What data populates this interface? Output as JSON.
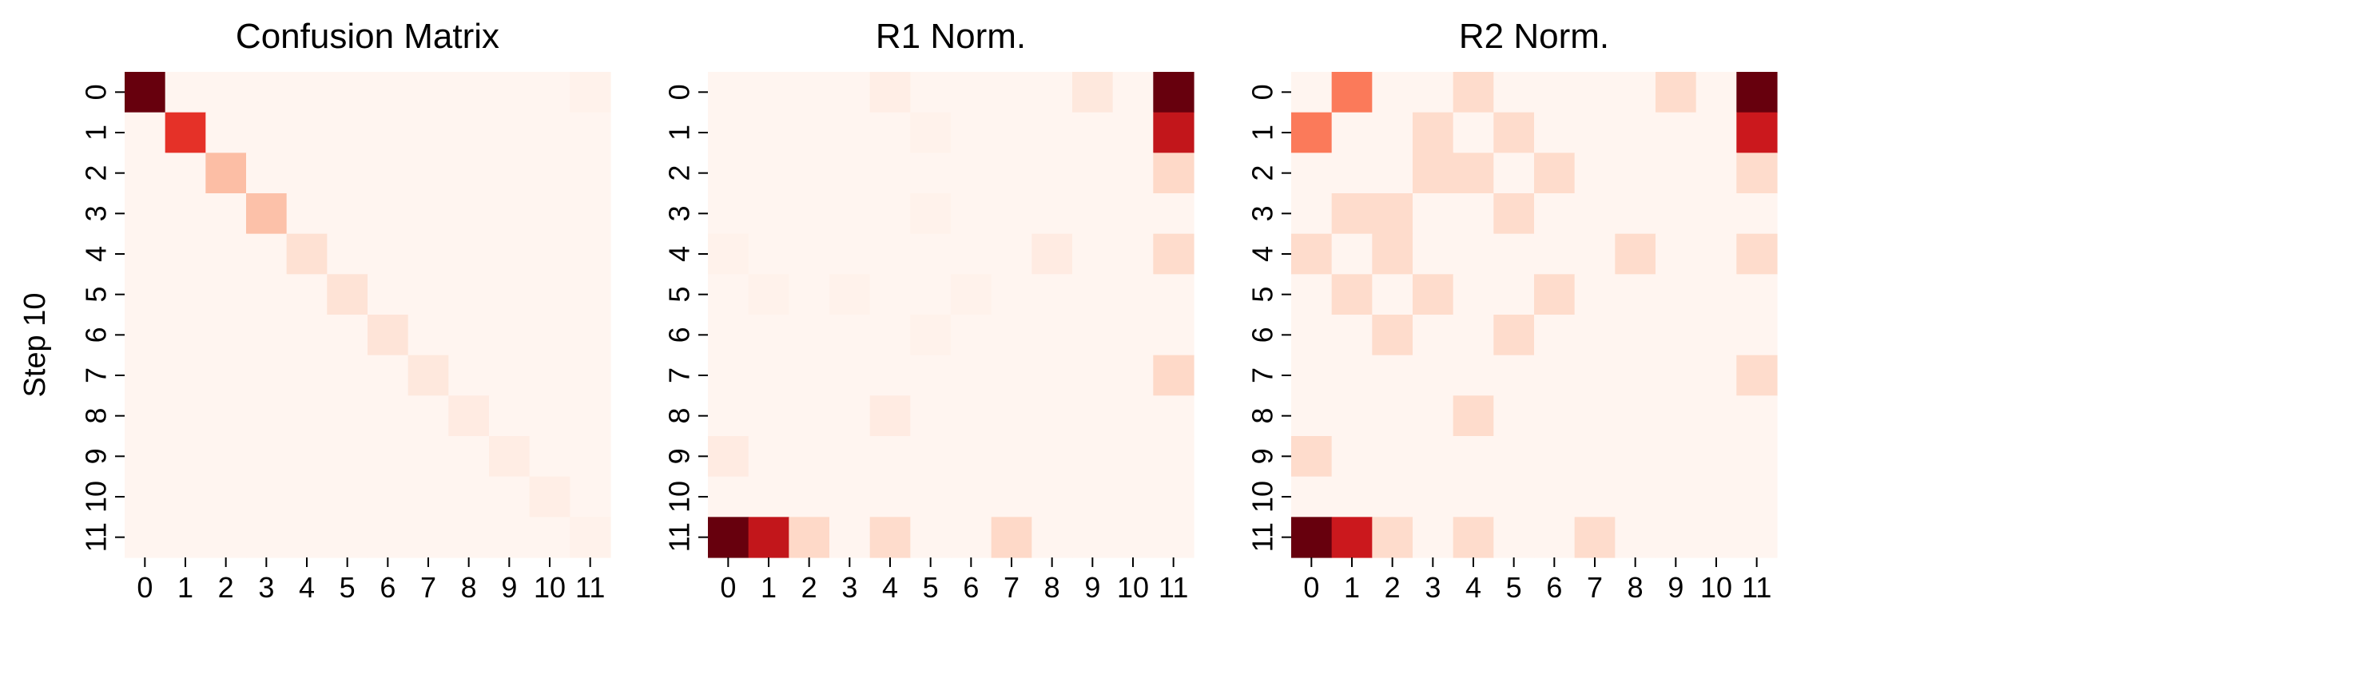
{
  "figure": {
    "ylabel": "Step 10"
  },
  "colors": {
    "scale": [
      "#fff5f0",
      "#fee0d2",
      "#fcbba1",
      "#fc9272",
      "#fb6a4a",
      "#ef3b2c",
      "#cb181d",
      "#a50f15",
      "#67000d"
    ]
  },
  "chart_data": [
    {
      "type": "heatmap",
      "title": "Confusion Matrix",
      "xlabel": "",
      "ylabel": "Step 10",
      "x_ticks": [
        "0",
        "1",
        "2",
        "3",
        "4",
        "5",
        "6",
        "7",
        "8",
        "9",
        "10",
        "11"
      ],
      "y_ticks": [
        "0",
        "1",
        "2",
        "3",
        "4",
        "5",
        "6",
        "7",
        "8",
        "9",
        "10",
        "11"
      ],
      "colorscale": "Reds",
      "vmin": 0,
      "vmax": 1,
      "values": [
        [
          1.0,
          0,
          0,
          0,
          0,
          0,
          0,
          0,
          0,
          0,
          0,
          0.02
        ],
        [
          0,
          0.66,
          0,
          0,
          0,
          0,
          0,
          0,
          0,
          0,
          0,
          0
        ],
        [
          0,
          0,
          0.24,
          0,
          0,
          0,
          0,
          0,
          0,
          0,
          0,
          0
        ],
        [
          0,
          0,
          0,
          0.23,
          0,
          0,
          0,
          0,
          0,
          0,
          0,
          0
        ],
        [
          0,
          0,
          0,
          0,
          0.12,
          0,
          0,
          0,
          0,
          0,
          0,
          0
        ],
        [
          0,
          0,
          0,
          0,
          0,
          0.11,
          0,
          0,
          0,
          0,
          0,
          0
        ],
        [
          0,
          0,
          0,
          0,
          0,
          0,
          0.1,
          0,
          0,
          0,
          0,
          0
        ],
        [
          0,
          0,
          0,
          0,
          0,
          0,
          0,
          0.08,
          0,
          0,
          0,
          0
        ],
        [
          0,
          0,
          0,
          0,
          0,
          0,
          0,
          0,
          0.06,
          0,
          0,
          0
        ],
        [
          0,
          0,
          0,
          0,
          0,
          0,
          0,
          0,
          0,
          0.05,
          0,
          0
        ],
        [
          0,
          0,
          0,
          0,
          0,
          0,
          0,
          0,
          0,
          0,
          0.04,
          0
        ],
        [
          0,
          0,
          0,
          0,
          0,
          0,
          0,
          0,
          0,
          0,
          0,
          0.02
        ]
      ]
    },
    {
      "type": "heatmap",
      "title": "R1 Norm.",
      "xlabel": "",
      "ylabel": "",
      "x_ticks": [
        "0",
        "1",
        "2",
        "3",
        "4",
        "5",
        "6",
        "7",
        "8",
        "9",
        "10",
        "11"
      ],
      "y_ticks": [
        "0",
        "1",
        "2",
        "3",
        "4",
        "5",
        "6",
        "7",
        "8",
        "9",
        "10",
        "11"
      ],
      "colorscale": "Reds",
      "vmin": 0,
      "vmax": 1,
      "values": [
        [
          0,
          0,
          0,
          0,
          0.04,
          0,
          0,
          0,
          0,
          0.08,
          0,
          1.0
        ],
        [
          0,
          0,
          0,
          0,
          0,
          0.02,
          0,
          0,
          0,
          0,
          0,
          0.78
        ],
        [
          0,
          0,
          0,
          0,
          0,
          0,
          0,
          0,
          0,
          0,
          0,
          0.15
        ],
        [
          0,
          0,
          0,
          0,
          0,
          0.02,
          0,
          0,
          0,
          0,
          0,
          0
        ],
        [
          0.02,
          0,
          0,
          0,
          0,
          0,
          0,
          0,
          0.06,
          0,
          0,
          0.14
        ],
        [
          0,
          0.02,
          0,
          0.02,
          0,
          0,
          0.02,
          0,
          0,
          0,
          0,
          0
        ],
        [
          0,
          0,
          0,
          0,
          0,
          0.02,
          0,
          0,
          0,
          0,
          0,
          0
        ],
        [
          0,
          0,
          0,
          0,
          0,
          0,
          0,
          0,
          0,
          0,
          0,
          0.15
        ],
        [
          0,
          0,
          0,
          0,
          0.06,
          0,
          0,
          0,
          0,
          0,
          0,
          0
        ],
        [
          0.06,
          0,
          0,
          0,
          0,
          0,
          0,
          0,
          0,
          0,
          0,
          0
        ],
        [
          0,
          0,
          0,
          0,
          0,
          0,
          0,
          0,
          0,
          0,
          0,
          0
        ],
        [
          1.0,
          0.78,
          0.15,
          0,
          0.14,
          0,
          0,
          0.15,
          0,
          0,
          0,
          0
        ]
      ]
    },
    {
      "type": "heatmap",
      "title": "R2 Norm.",
      "xlabel": "",
      "ylabel": "",
      "x_ticks": [
        "0",
        "1",
        "2",
        "3",
        "4",
        "5",
        "6",
        "7",
        "8",
        "9",
        "10",
        "11"
      ],
      "y_ticks": [
        "0",
        "1",
        "2",
        "3",
        "4",
        "5",
        "6",
        "7",
        "8",
        "9",
        "10",
        "11"
      ],
      "colorscale": "Reds",
      "vmin": 0,
      "vmax": 1,
      "values": [
        [
          0,
          0.45,
          0,
          0,
          0.14,
          0,
          0,
          0,
          0,
          0.14,
          0,
          1.0
        ],
        [
          0.45,
          0,
          0,
          0.14,
          0,
          0.14,
          0,
          0,
          0,
          0,
          0,
          0.75
        ],
        [
          0,
          0,
          0,
          0.14,
          0.14,
          0,
          0.14,
          0,
          0,
          0,
          0,
          0.14
        ],
        [
          0,
          0.14,
          0.14,
          0,
          0,
          0.14,
          0,
          0,
          0,
          0,
          0,
          0
        ],
        [
          0.14,
          0,
          0.14,
          0,
          0,
          0,
          0,
          0,
          0.14,
          0,
          0,
          0.14
        ],
        [
          0,
          0.14,
          0,
          0.14,
          0,
          0,
          0.14,
          0,
          0,
          0,
          0,
          0
        ],
        [
          0,
          0,
          0.14,
          0,
          0,
          0.14,
          0,
          0,
          0,
          0,
          0,
          0
        ],
        [
          0,
          0,
          0,
          0,
          0,
          0,
          0,
          0,
          0,
          0,
          0,
          0.14
        ],
        [
          0,
          0,
          0,
          0,
          0.14,
          0,
          0,
          0,
          0,
          0,
          0,
          0
        ],
        [
          0.14,
          0,
          0,
          0,
          0,
          0,
          0,
          0,
          0,
          0,
          0,
          0
        ],
        [
          0,
          0,
          0,
          0,
          0,
          0,
          0,
          0,
          0,
          0,
          0,
          0
        ],
        [
          1.0,
          0.75,
          0.14,
          0,
          0.14,
          0,
          0,
          0.14,
          0,
          0,
          0,
          0
        ]
      ]
    }
  ]
}
